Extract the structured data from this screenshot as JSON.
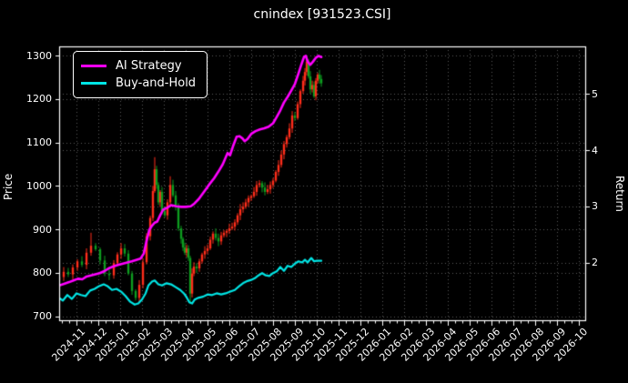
{
  "title": "cnindex [931523.CSI]",
  "legend": {
    "items": [
      {
        "label": "AI Strategy",
        "color": "#ff00ff"
      },
      {
        "label": "Buy-and-Hold",
        "color": "#00e5e5"
      }
    ]
  },
  "axes": {
    "x": {
      "tick_labels": [
        "2024-11",
        "2024-12",
        "2025-01",
        "2025-02",
        "2025-03",
        "2025-04",
        "2025-05",
        "2025-06",
        "2025-07",
        "2025-08",
        "2025-09",
        "2025-10",
        "2025-11",
        "2025-12",
        "2026-01",
        "2026-02",
        "2026-03",
        "2026-04",
        "2026-05",
        "2026-06",
        "2026-07",
        "2026-08",
        "2026-09",
        "2026-10"
      ]
    },
    "left": {
      "label": "Price",
      "ticks": [
        700,
        800,
        900,
        1000,
        1100,
        1200,
        1300
      ],
      "range": [
        690,
        1320
      ]
    },
    "right": {
      "label": "Return",
      "ticks": [
        2,
        3,
        4,
        5
      ],
      "range": [
        0.97,
        5.85
      ]
    }
  },
  "colors": {
    "background": "#000000",
    "foreground": "#ffffff",
    "grid": "#5a5a5a",
    "candle_up": "#ff2d1a",
    "candle_down": "#0d9c1f",
    "ai_strategy": "#ff00ff",
    "buy_and_hold": "#00e5e5"
  },
  "chart_data": {
    "type": "mixed",
    "title": "cnindex [931523.CSI]",
    "x_axis": {
      "unit": "days since 2024-11-01",
      "month_tick_labels_start": "2024-11",
      "months_shown": 24,
      "data_ends_near": "2025-10"
    },
    "grid": true,
    "legend_position": "upper left",
    "series": [
      {
        "name": "cnindex candlesticks",
        "type": "candlestick",
        "axis": "left",
        "first_open": 782,
        "days": [
          -23.8,
          -17.5,
          -11.3,
          -5,
          1.3,
          7.5,
          13.8,
          20,
          26.3,
          32.5,
          38.8,
          45,
          51.3,
          56.3,
          61.3,
          66.3,
          71.3,
          76.3,
          81.3,
          86.3,
          91.3,
          96.3,
          101.3,
          105,
          107.5,
          110,
          112.5,
          115,
          117.5,
          121.3,
          125,
          128.8,
          132.5,
          136.3,
          140,
          143.8,
          146.3,
          148.8,
          151.3,
          153.8,
          156.3,
          158.8,
          161.3,
          165,
          168.8,
          172.5,
          176.3,
          180,
          183.8,
          187.5,
          191.3,
          195,
          198.8,
          202.5,
          206.3,
          210,
          213.8,
          217.5,
          221.3,
          225,
          228.8,
          232.5,
          236.3,
          240,
          243.8,
          247.5,
          251.3,
          255,
          258.8,
          262.5,
          266.3,
          270,
          273.8,
          277.5,
          281.3,
          285,
          288.8,
          292.5,
          296.3,
          300,
          303.8,
          307.5,
          311.3,
          313.8,
          316.3,
          318.8,
          321.3,
          323.8,
          326.3,
          328.8,
          331.3,
          333.8,
          336.3
        ],
        "closes": [
          790,
          802,
          796,
          812,
          826,
          818,
          846,
          862,
          854,
          828,
          798,
          794,
          822,
          842,
          856,
          844,
          798,
          758,
          742,
          772,
          824,
          884,
          926,
          988,
          1038,
          1002,
          962,
          986,
          942,
          932,
          962,
          1002,
          978,
          952,
          902,
          878,
          858,
          846,
          856,
          834,
          752,
          798,
          814,
          810,
          826,
          842,
          850,
          856,
          876,
          890,
          880,
          872,
          886,
          892,
          896,
          902,
          906,
          916,
          932,
          946,
          952,
          962,
          972,
          976,
          986,
          1002,
          1006,
          996,
          986,
          992,
          1002,
          1012,
          1032,
          1048,
          1072,
          1096,
          1112,
          1132,
          1162,
          1156,
          1188,
          1218,
          1242,
          1262,
          1286,
          1252,
          1222,
          1232,
          1206,
          1242,
          1256,
          1246,
          1236
        ],
        "wick_overrides": {
          "7": {
            "high": 892
          },
          "24": {
            "high": 1066
          },
          "31": {
            "high": 1022
          },
          "40": {
            "low": 728
          },
          "84": {
            "high": 1292
          }
        }
      },
      {
        "name": "AI Strategy",
        "type": "line",
        "axis": "right",
        "color": "#ff00ff",
        "days": [
          -23.8,
          -17,
          -10,
          -4,
          2,
          8,
          14,
          20,
          26,
          32,
          39,
          45,
          51,
          58,
          64,
          70,
          76,
          83,
          88,
          92.5,
          96,
          100,
          104,
          107.5,
          111,
          115,
          119,
          124,
          130,
          137,
          144,
          150,
          157,
          162,
          168,
          173,
          178,
          183,
          189,
          195,
          201,
          207.5,
          211,
          215,
          220,
          224,
          228,
          231,
          235,
          240,
          246,
          252,
          258,
          264,
          270,
          275,
          280,
          285,
          290,
          295,
          300,
          305,
          309,
          312.5,
          315,
          317.5,
          321,
          325,
          329,
          332.5,
          336.3
        ],
        "returns": [
          1.59,
          1.62,
          1.65,
          1.68,
          1.71,
          1.7,
          1.75,
          1.77,
          1.79,
          1.81,
          1.85,
          1.9,
          1.93,
          1.96,
          1.98,
          2.0,
          2.02,
          2.05,
          2.07,
          2.16,
          2.37,
          2.58,
          2.66,
          2.71,
          2.73,
          2.84,
          2.94,
          2.97,
          3.02,
          3.0,
          2.99,
          2.99,
          3.0,
          3.05,
          3.13,
          3.22,
          3.31,
          3.4,
          3.5,
          3.62,
          3.75,
          3.95,
          3.91,
          4.07,
          4.24,
          4.25,
          4.21,
          4.16,
          4.2,
          4.29,
          4.34,
          4.37,
          4.39,
          4.42,
          4.48,
          4.59,
          4.71,
          4.85,
          4.95,
          5.06,
          5.18,
          5.37,
          5.53,
          5.66,
          5.68,
          5.58,
          5.52,
          5.58,
          5.65,
          5.68,
          5.66
        ]
      },
      {
        "name": "Buy-and-Hold",
        "type": "line",
        "axis": "right",
        "color": "#00e5e5",
        "days": [
          -23.8,
          -18.8,
          -12.5,
          -6.3,
          0,
          6.3,
          12.5,
          18.8,
          25,
          31.3,
          37.5,
          42.5,
          48.8,
          55,
          61.3,
          67.5,
          73.8,
          80,
          85,
          90,
          95,
          98.8,
          103.8,
          107.5,
          112.5,
          117.5,
          123.8,
          130,
          136.3,
          142.5,
          147.5,
          151.3,
          155,
          158.8,
          162.5,
          167.5,
          173.8,
          180,
          186.3,
          192.5,
          198.8,
          205,
          211.3,
          217.5,
          223.8,
          230,
          235,
          240,
          245,
          250,
          255,
          260,
          265,
          270,
          275,
          280,
          285,
          290,
          295,
          300,
          305,
          310,
          313.8,
          317.5,
          322.5,
          326.3,
          330,
          336.3
        ],
        "returns": [
          1.37,
          1.32,
          1.42,
          1.35,
          1.45,
          1.42,
          1.4,
          1.5,
          1.53,
          1.58,
          1.61,
          1.58,
          1.51,
          1.53,
          1.48,
          1.4,
          1.3,
          1.25,
          1.27,
          1.34,
          1.45,
          1.59,
          1.66,
          1.68,
          1.61,
          1.59,
          1.63,
          1.61,
          1.56,
          1.51,
          1.45,
          1.38,
          1.29,
          1.27,
          1.34,
          1.37,
          1.39,
          1.43,
          1.42,
          1.45,
          1.43,
          1.45,
          1.48,
          1.51,
          1.58,
          1.64,
          1.67,
          1.69,
          1.72,
          1.77,
          1.81,
          1.77,
          1.76,
          1.81,
          1.84,
          1.92,
          1.85,
          1.94,
          1.92,
          1.98,
          2.02,
          2.0,
          2.05,
          2.0,
          2.08,
          2.02,
          2.03,
          2.03
        ]
      }
    ]
  }
}
